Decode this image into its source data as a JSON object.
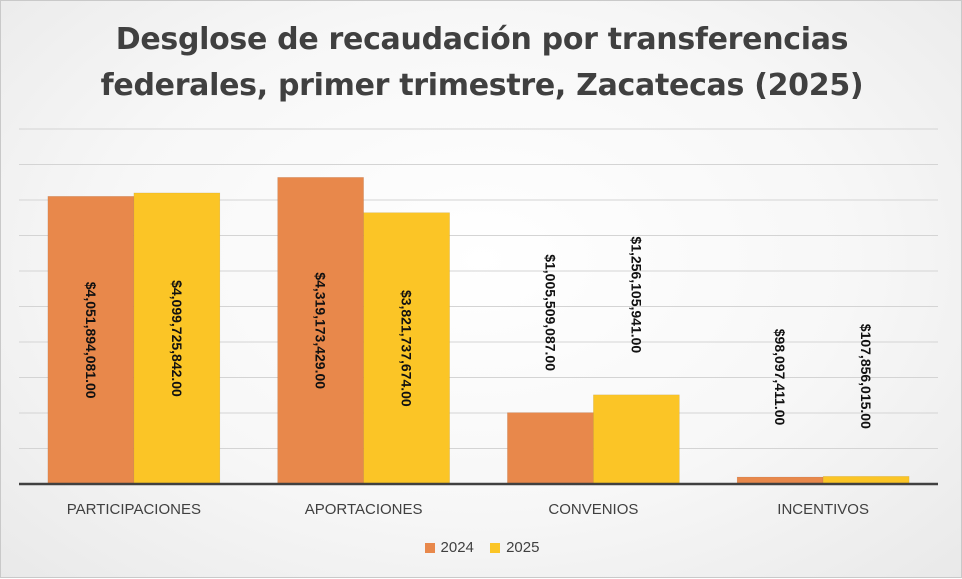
{
  "chart_data": {
    "type": "bar",
    "title": "Desglose de recaudación por transferencias federales, primer trimestre, Zacatecas (2025)",
    "title_lines": [
      "Desglose de recaudación por transferencias",
      "federales, primer trimestre, Zacatecas (2025)"
    ],
    "categories": [
      "PARTICIPACIONES",
      "APORTACIONES",
      "CONVENIOS",
      "INCENTIVOS"
    ],
    "series": [
      {
        "name": "2024",
        "color": "#E8884B",
        "values": [
          4051894081.0,
          4319173429.0,
          1005509087.0,
          98097411.0
        ],
        "labels": [
          "$4,051,894,081.00",
          "$4,319,173,429.00",
          "$1,005,509,087.00",
          "$98,097,411.00"
        ]
      },
      {
        "name": "2025",
        "color": "#FBC526",
        "values": [
          4099725842.0,
          3821737674.0,
          1256105941.0,
          107856015.0
        ],
        "labels": [
          "$4,099,725,842.00",
          "$3,821,737,674.00",
          "$1,256,105,941.00",
          "$107,856,015.00"
        ]
      }
    ],
    "ylim": [
      0,
      5000000000
    ],
    "grid": true,
    "legend": "bottom"
  }
}
